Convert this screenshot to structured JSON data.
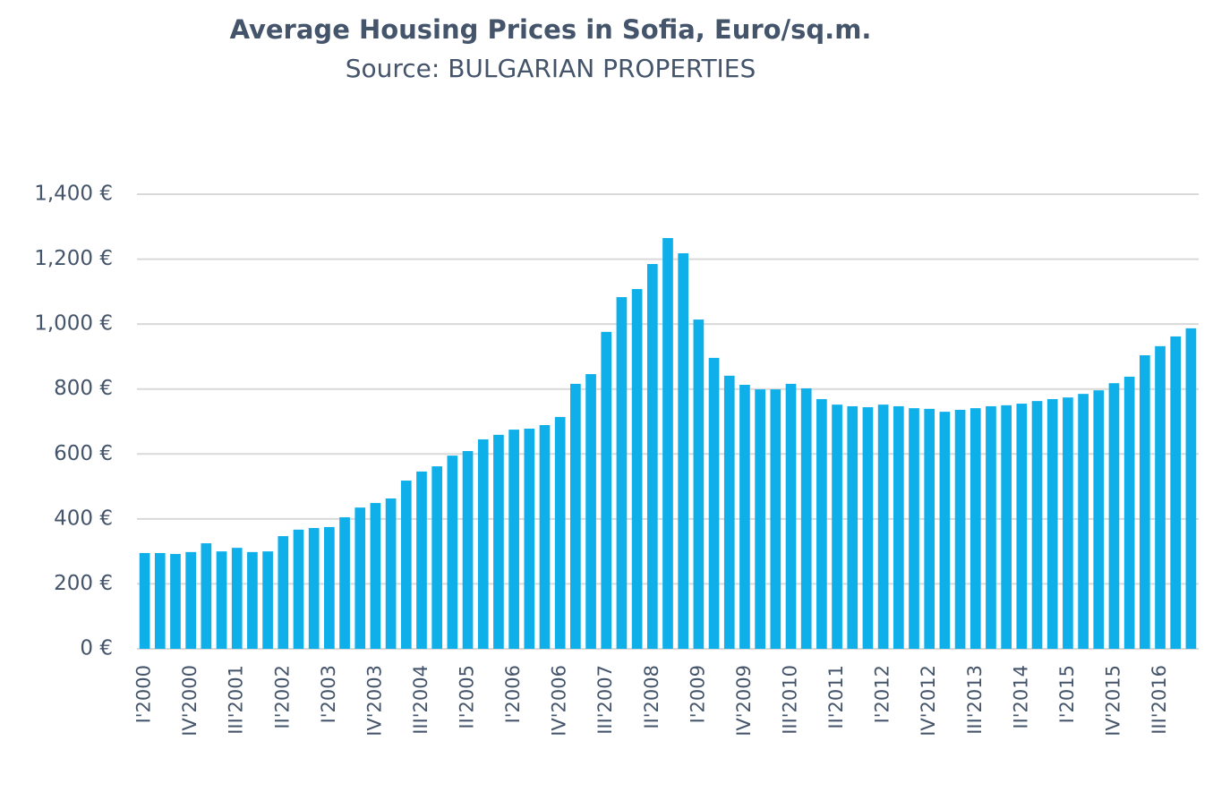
{
  "chart_data": {
    "type": "bar",
    "title": "Average Housing Prices in Sofia, Euro/sq.m.",
    "subtitle": "Source: BULGARIAN PROPERTIES",
    "categories": [
      "I'2000",
      null,
      null,
      "IV'2000",
      null,
      null,
      "III'2001",
      null,
      null,
      "II'2002",
      null,
      null,
      "I'2003",
      null,
      null,
      "IV'2003",
      null,
      null,
      "III'2004",
      null,
      null,
      "II'2005",
      null,
      null,
      "I'2006",
      null,
      null,
      "IV'2006",
      null,
      null,
      "III'2007",
      null,
      null,
      "II'2008",
      null,
      null,
      "I'2009",
      null,
      null,
      "IV'2009",
      null,
      null,
      "III'2010",
      null,
      null,
      "II'2011",
      null,
      null,
      "I'2012",
      null,
      null,
      "IV'2012",
      null,
      null,
      "III'2013",
      null,
      null,
      "II'2014",
      null,
      null,
      "I'2015",
      null,
      null,
      "IV'2015",
      null,
      null,
      "III'2016",
      null,
      null
    ],
    "values": [
      295,
      295,
      292,
      298,
      325,
      300,
      311,
      298,
      300,
      347,
      367,
      372,
      375,
      405,
      435,
      449,
      463,
      518,
      546,
      562,
      595,
      609,
      645,
      659,
      675,
      678,
      689,
      714,
      816,
      846,
      976,
      1083,
      1108,
      1185,
      1265,
      1218,
      1014,
      896,
      841,
      813,
      799,
      799,
      816,
      802,
      769,
      752,
      747,
      744,
      752,
      747,
      741,
      739,
      730,
      736,
      741,
      747,
      750,
      755,
      763,
      769,
      774,
      785,
      796,
      818,
      838,
      904,
      932,
      962,
      987
    ],
    "color": "#0fb0ea",
    "ylim": [
      0,
      1400
    ],
    "yticks": [
      {
        "value": 0,
        "label": "0 €"
      },
      {
        "value": 200,
        "label": "200 €"
      },
      {
        "value": 400,
        "label": "400 €"
      },
      {
        "value": 600,
        "label": "600 €"
      },
      {
        "value": 800,
        "label": "800 €"
      },
      {
        "value": 1000,
        "label": "1,000 €"
      },
      {
        "value": 1200,
        "label": "1,200 €"
      },
      {
        "value": 1400,
        "label": "1,400 €"
      }
    ],
    "grid": true
  }
}
